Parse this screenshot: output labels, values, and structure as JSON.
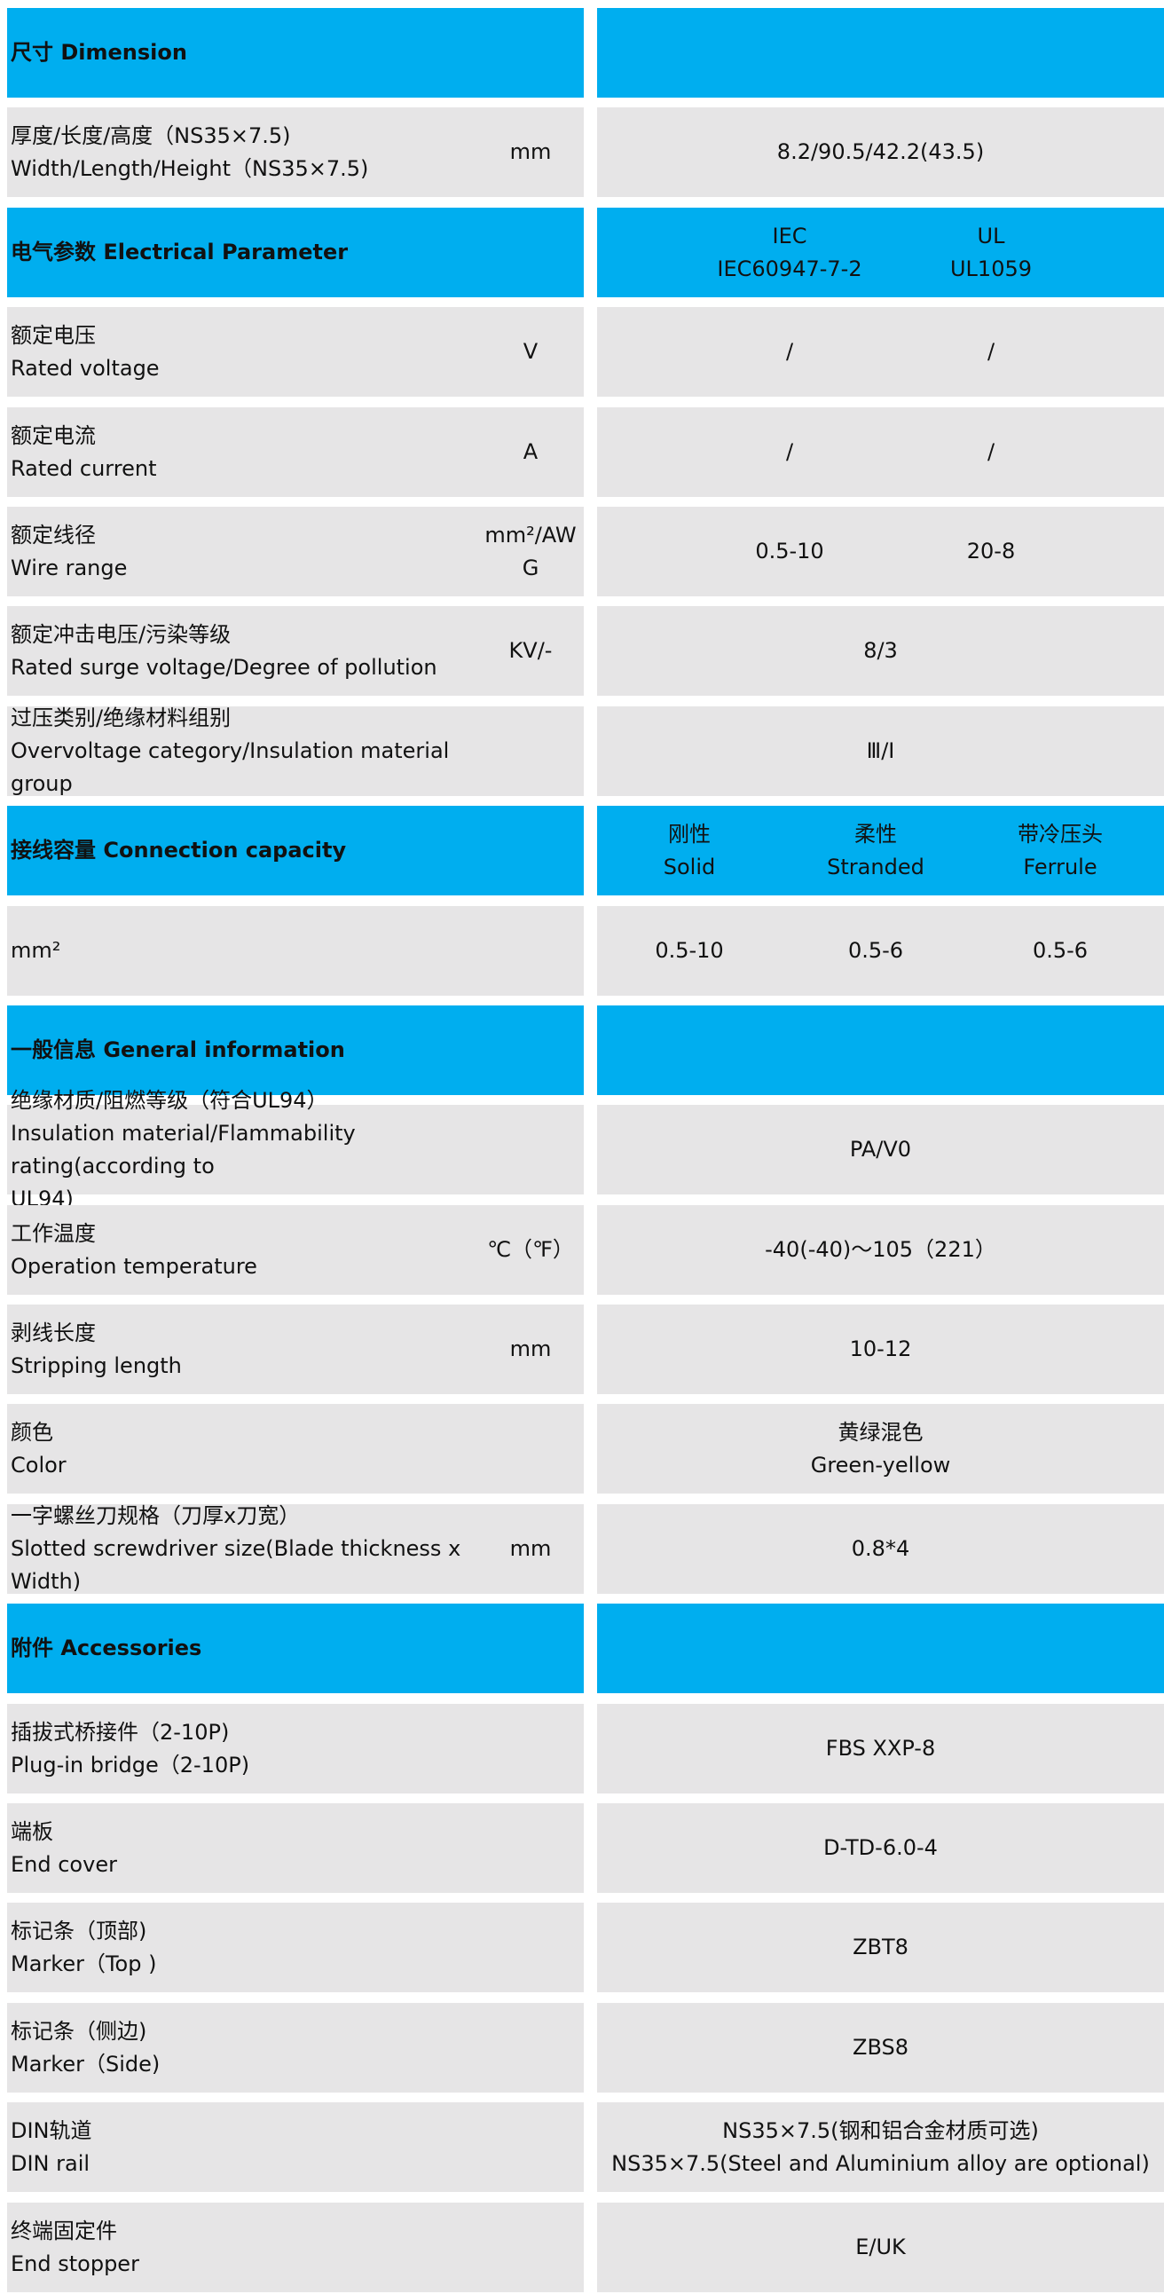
{
  "colors": {
    "header": "#00AEEF",
    "row": "#E6E5E6"
  },
  "rows": [
    {
      "type": "header",
      "label": [
        "尺寸 Dimension"
      ],
      "values": []
    },
    {
      "type": "data",
      "label": [
        "厚度/长度/高度（NS35×7.5)",
        "Width/Length/Height（NS35×7.5)"
      ],
      "unit": [
        "mm"
      ],
      "values": [
        [
          "8.2/90.5/42.2(43.5)"
        ]
      ]
    },
    {
      "type": "header",
      "label": [
        "电气参数 Electrical Parameter"
      ],
      "values": [
        [
          "IEC",
          "IEC60947-7-2"
        ],
        [
          "UL",
          "UL1059"
        ]
      ]
    },
    {
      "type": "data",
      "label": [
        "额定电压",
        "Rated voltage"
      ],
      "unit": [
        "V"
      ],
      "values": [
        [
          "/"
        ],
        [
          "/"
        ]
      ]
    },
    {
      "type": "data",
      "label": [
        "额定电流",
        "Rated current"
      ],
      "unit": [
        "A"
      ],
      "values": [
        [
          "/"
        ],
        [
          "/"
        ]
      ]
    },
    {
      "type": "data",
      "label": [
        "额定线径",
        "Wire range"
      ],
      "unit": [
        "mm²/AW",
        "G"
      ],
      "values": [
        [
          "0.5-10"
        ],
        [
          "20-8"
        ]
      ]
    },
    {
      "type": "data",
      "label": [
        "额定冲击电压/污染等级",
        "Rated surge voltage/Degree of pollution"
      ],
      "unit": [
        "KV/-"
      ],
      "values": [
        [
          "8/3"
        ]
      ]
    },
    {
      "type": "data",
      "label": [
        "过压类别/绝缘材料组别",
        "Overvoltage category/Insulation material group"
      ],
      "unit": [],
      "values": [
        [
          "Ⅲ/Ⅰ"
        ]
      ]
    },
    {
      "type": "header",
      "label": [
        "接线容量 Connection capacity"
      ],
      "values": [
        [
          "刚性",
          "Solid"
        ],
        [
          "柔性",
          "Stranded"
        ],
        [
          "带冷压头",
          "Ferrule"
        ]
      ]
    },
    {
      "type": "data",
      "label": [
        "mm²"
      ],
      "unit": [],
      "values": [
        [
          "0.5-10"
        ],
        [
          "0.5-6"
        ],
        [
          "0.5-6"
        ]
      ]
    },
    {
      "type": "header",
      "label": [
        "一般信息 General information"
      ],
      "values": []
    },
    {
      "type": "data",
      "label": [
        "绝缘材质/阻燃等级（符合UL94）",
        "Insulation material/Flammability rating(according to",
        "UL94)"
      ],
      "unit": [],
      "values": [
        [
          "PA/V0"
        ]
      ]
    },
    {
      "type": "data",
      "label": [
        "工作温度",
        "Operation temperature"
      ],
      "unit": [
        "℃（℉）"
      ],
      "values": [
        [
          "-40(-40)～105（221）"
        ]
      ]
    },
    {
      "type": "data",
      "label": [
        "剥线长度",
        "Stripping length"
      ],
      "unit": [
        "mm"
      ],
      "values": [
        [
          "10-12"
        ]
      ]
    },
    {
      "type": "data",
      "label": [
        "颜色",
        "Color"
      ],
      "unit": [],
      "values": [
        [
          "黄绿混色",
          "Green-yellow"
        ]
      ]
    },
    {
      "type": "data",
      "label": [
        "一字螺丝刀规格（刀厚x刀宽）",
        "Slotted screwdriver size(Blade thickness x",
        "Width)"
      ],
      "unit": [
        "mm"
      ],
      "values": [
        [
          "0.8*4"
        ]
      ]
    },
    {
      "type": "header",
      "label": [
        "附件 Accessories"
      ],
      "values": []
    },
    {
      "type": "data",
      "label": [
        "插拔式桥接件（2-10P)",
        "Plug-in bridge（2-10P)"
      ],
      "unit": [],
      "values": [
        [
          "FBS XXP-8"
        ]
      ]
    },
    {
      "type": "data",
      "label": [
        "端板",
        "End cover"
      ],
      "unit": [],
      "values": [
        [
          "D-TD-6.0-4"
        ]
      ]
    },
    {
      "type": "data",
      "label": [
        "标记条（顶部)",
        "Marker（Top )"
      ],
      "unit": [],
      "values": [
        [
          "ZBT8"
        ]
      ]
    },
    {
      "type": "data",
      "label": [
        "标记条（侧边)",
        "Marker（Side)"
      ],
      "unit": [],
      "values": [
        [
          "ZBS8"
        ]
      ]
    },
    {
      "type": "data",
      "label": [
        "DIN轨道",
        "DIN rail"
      ],
      "unit": [],
      "values": [
        [
          "NS35×7.5(钢和铝合金材质可选)",
          "NS35×7.5(Steel and Aluminium alloy are optional)"
        ]
      ]
    },
    {
      "type": "data",
      "label": [
        "终端固定件",
        "End stopper"
      ],
      "unit": [],
      "values": [
        [
          "E/UK"
        ]
      ]
    }
  ]
}
